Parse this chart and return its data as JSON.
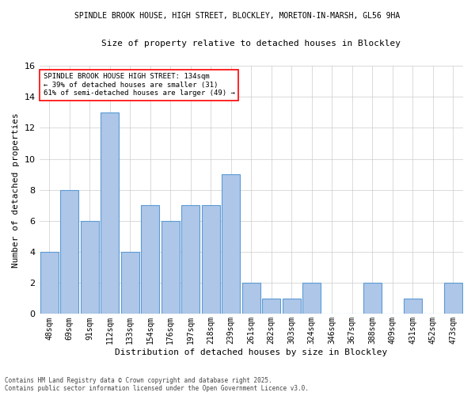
{
  "title1": "SPINDLE BROOK HOUSE, HIGH STREET, BLOCKLEY, MORETON-IN-MARSH, GL56 9HA",
  "title2": "Size of property relative to detached houses in Blockley",
  "xlabel": "Distribution of detached houses by size in Blockley",
  "ylabel": "Number of detached properties",
  "categories": [
    "48sqm",
    "69sqm",
    "91sqm",
    "112sqm",
    "133sqm",
    "154sqm",
    "176sqm",
    "197sqm",
    "218sqm",
    "239sqm",
    "261sqm",
    "282sqm",
    "303sqm",
    "324sqm",
    "346sqm",
    "367sqm",
    "388sqm",
    "409sqm",
    "431sqm",
    "452sqm",
    "473sqm"
  ],
  "values": [
    4,
    8,
    6,
    13,
    4,
    7,
    6,
    7,
    7,
    9,
    2,
    1,
    1,
    2,
    0,
    0,
    2,
    0,
    1,
    0,
    2
  ],
  "bar_color": "#aec6e8",
  "bar_edge_color": "#5b9bd5",
  "annotation_line1": "SPINDLE BROOK HOUSE HIGH STREET: 134sqm",
  "annotation_line2": "← 39% of detached houses are smaller (31)",
  "annotation_line3": "61% of semi-detached houses are larger (49) →",
  "ylim": [
    0,
    16
  ],
  "yticks": [
    0,
    2,
    4,
    6,
    8,
    10,
    12,
    14,
    16
  ],
  "footer1": "Contains HM Land Registry data © Crown copyright and database right 2025.",
  "footer2": "Contains public sector information licensed under the Open Government Licence v3.0.",
  "bg_color": "#ffffff",
  "grid_color": "#cccccc"
}
